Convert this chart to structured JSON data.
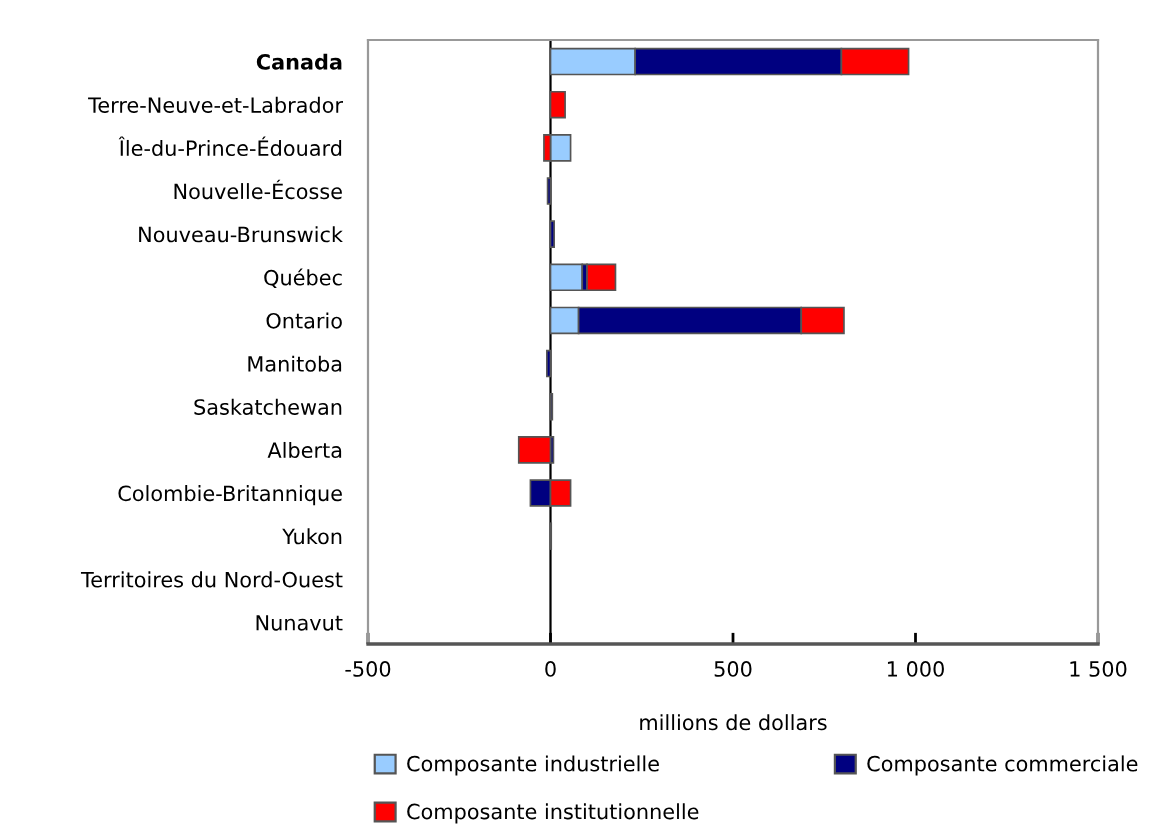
{
  "chart_data": {
    "type": "bar",
    "orientation": "horizontal",
    "stacked": true,
    "categories": [
      "Canada",
      "Terre-Neuve-et-Labrador",
      "Île-du-Prince-Édouard",
      "Nouvelle-Écosse",
      "Nouveau-Brunswick",
      "Québec",
      "Ontario",
      "Manitoba",
      "Saskatchewan",
      "Alberta",
      "Colombie-Britannique",
      "Yukon",
      "Territoires du Nord-Ouest",
      "Nunavut"
    ],
    "series": [
      {
        "name": "Composante industrielle",
        "color": "#99ccff",
        "values": [
          232,
          null,
          55,
          null,
          null,
          87,
          77,
          null,
          null,
          null,
          null,
          null,
          null,
          null
        ]
      },
      {
        "name": "Composante commerciale",
        "color": "#000080",
        "values": [
          565,
          null,
          null,
          -8,
          10,
          13,
          610,
          -10,
          5,
          8,
          -55,
          2,
          null,
          null
        ]
      },
      {
        "name": "Composante institutionnelle",
        "color": "#ff0000",
        "values": [
          184,
          40,
          -18,
          null,
          null,
          78,
          117,
          null,
          null,
          -87,
          55,
          null,
          null,
          null
        ]
      }
    ],
    "xlabel": "millions de dollars",
    "xlim": [
      -500,
      1500
    ],
    "xticks": [
      -500,
      0,
      500,
      {
        "value": 1000,
        "label": "1 000"
      },
      {
        "value": 1500,
        "label": "1 500"
      }
    ],
    "ref_lines": [
      {
        "axis": "x",
        "value": 0,
        "color": "#000000"
      }
    ],
    "legend": "bottom",
    "grid": false
  }
}
